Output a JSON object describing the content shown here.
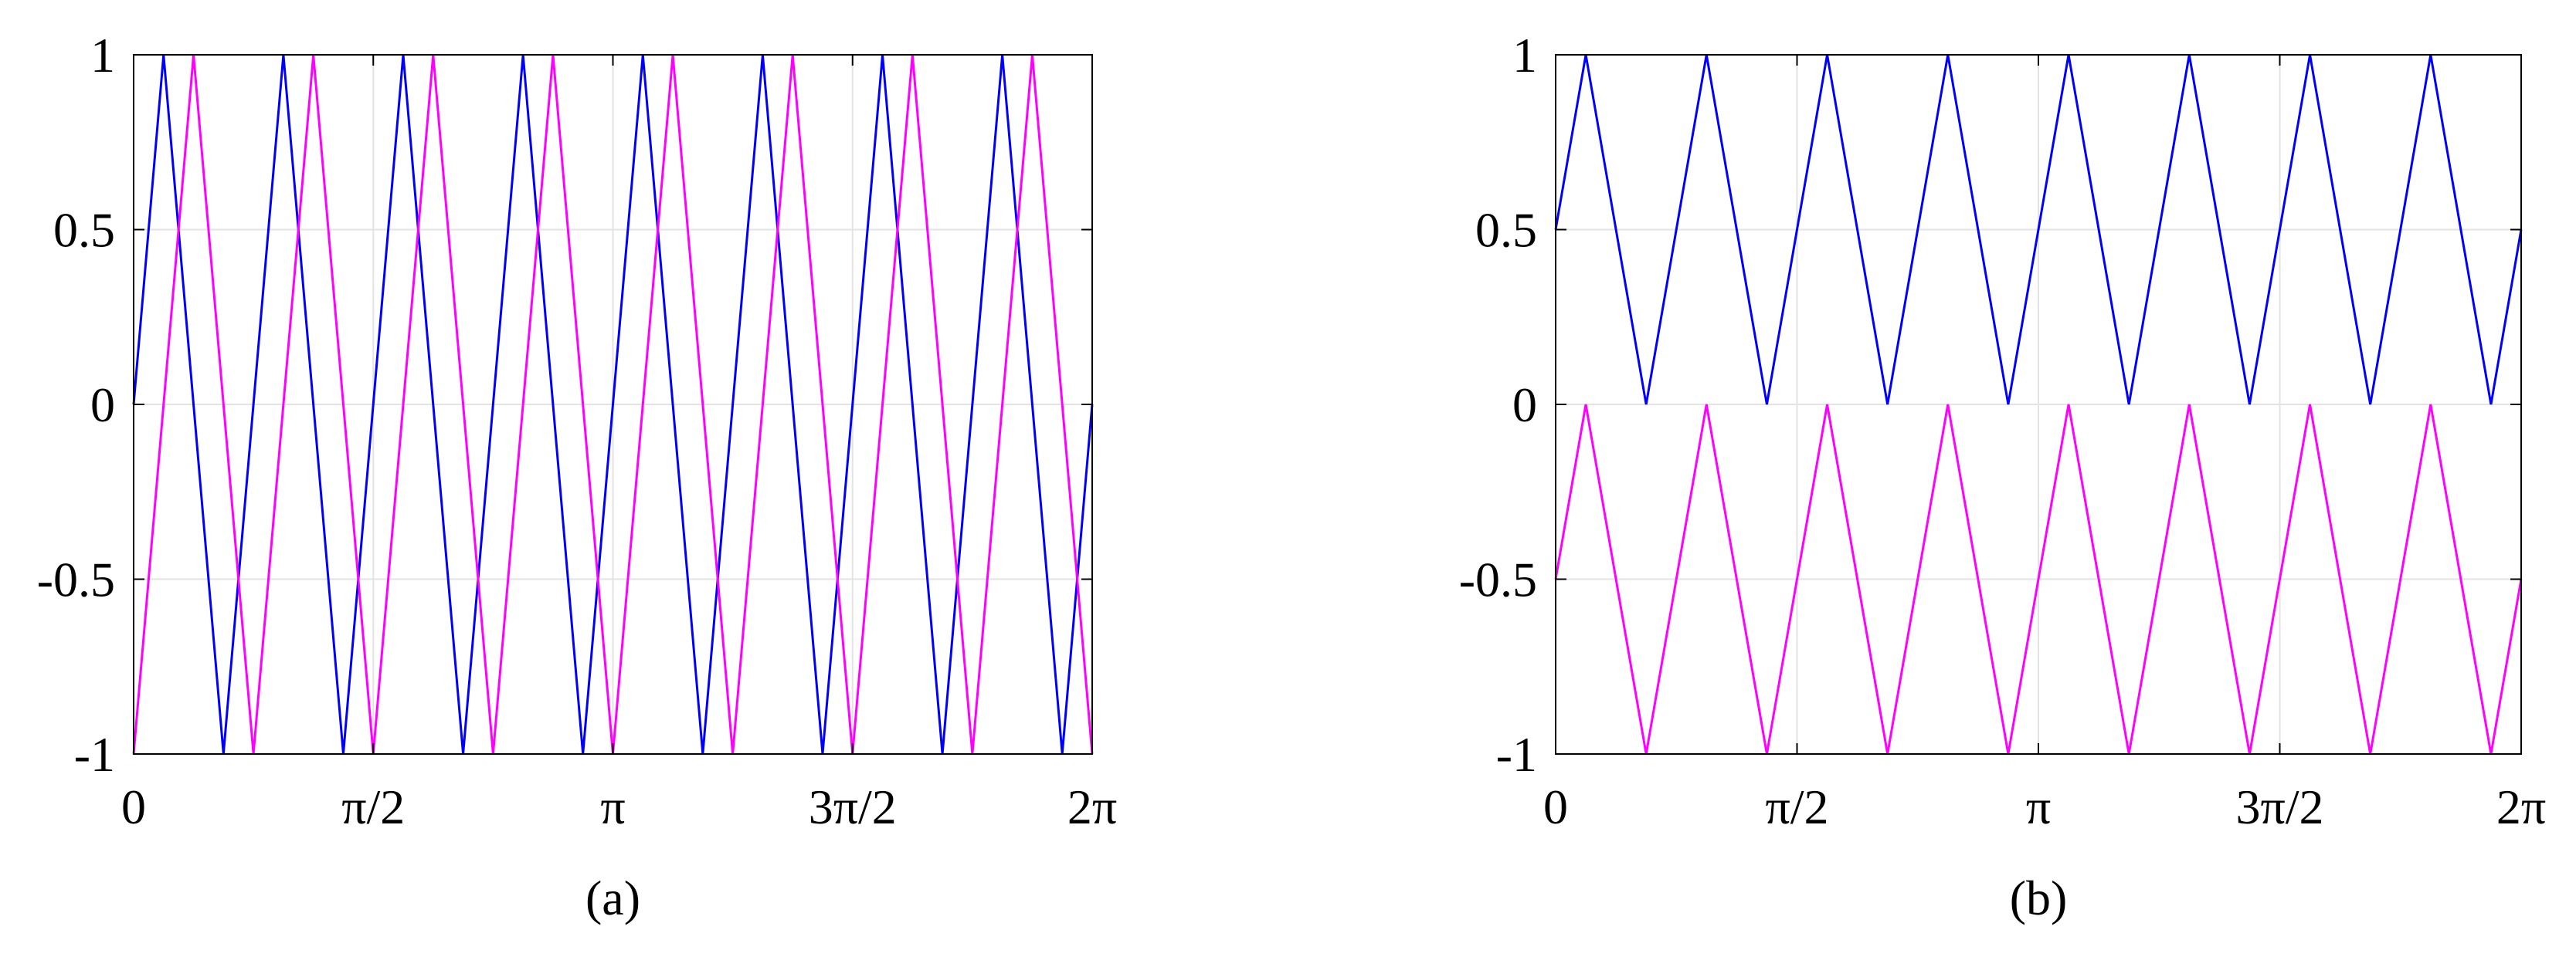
{
  "chart_data": [
    {
      "panel_label": "(a)",
      "type": "line",
      "xlim": [
        0,
        6.283185307
      ],
      "ylim": [
        -1,
        1
      ],
      "grid": true,
      "xticks": [
        {
          "value": 0,
          "label": "0"
        },
        {
          "value": 1.570796327,
          "label": "π/2"
        },
        {
          "value": 3.141592654,
          "label": "π"
        },
        {
          "value": 4.71238898,
          "label": "3π/2"
        },
        {
          "value": 6.283185307,
          "label": "2π"
        }
      ],
      "yticks": [
        {
          "value": 1,
          "label": "1"
        },
        {
          "value": 0.5,
          "label": "0.5"
        },
        {
          "value": 0,
          "label": "0"
        },
        {
          "value": -0.5,
          "label": "-0.5"
        },
        {
          "value": -1,
          "label": "-1"
        }
      ],
      "series": [
        {
          "color": "#0000ff",
          "x": [
            0,
            0.1963,
            0.589,
            0.9817,
            1.3744,
            1.7671,
            2.1598,
            2.5525,
            2.9452,
            3.3379,
            3.7306,
            4.1233,
            4.516,
            4.9087,
            5.3014,
            5.6941,
            6.0868,
            6.2832
          ],
          "y": [
            0,
            1,
            -1,
            1,
            -1,
            1,
            -1,
            1,
            -1,
            1,
            -1,
            1,
            -1,
            1,
            -1,
            1,
            -1,
            0
          ]
        },
        {
          "color": "#ff00ff",
          "x": [
            0,
            0.3927,
            0.7854,
            1.1781,
            1.5708,
            1.9635,
            2.3562,
            2.7489,
            3.1416,
            3.5343,
            3.927,
            4.3197,
            4.7124,
            5.1051,
            5.4978,
            5.8905,
            6.2832
          ],
          "y": [
            -1,
            1,
            -1,
            1,
            -1,
            1,
            -1,
            1,
            -1,
            1,
            -1,
            1,
            -1,
            1,
            -1,
            1,
            -1
          ]
        }
      ]
    },
    {
      "panel_label": "(b)",
      "type": "line",
      "xlim": [
        0,
        6.283185307
      ],
      "ylim": [
        -1,
        1
      ],
      "grid": true,
      "xticks": [
        {
          "value": 0,
          "label": "0"
        },
        {
          "value": 1.570796327,
          "label": "π/2"
        },
        {
          "value": 3.141592654,
          "label": "π"
        },
        {
          "value": 4.71238898,
          "label": "3π/2"
        },
        {
          "value": 6.283185307,
          "label": "2π"
        }
      ],
      "yticks": [
        {
          "value": 1,
          "label": "1"
        },
        {
          "value": 0.5,
          "label": "0.5"
        },
        {
          "value": 0,
          "label": "0"
        },
        {
          "value": -0.5,
          "label": "-0.5"
        },
        {
          "value": -1,
          "label": "-1"
        }
      ],
      "series": [
        {
          "color": "#0000ff",
          "x": [
            0,
            0.1963,
            0.589,
            0.9817,
            1.3744,
            1.7671,
            2.1598,
            2.5525,
            2.9452,
            3.3379,
            3.7306,
            4.1233,
            4.516,
            4.9087,
            5.3014,
            5.6941,
            6.0868,
            6.2832
          ],
          "y": [
            0.5,
            1,
            0,
            1,
            0,
            1,
            0,
            1,
            0,
            1,
            0,
            1,
            0,
            1,
            0,
            1,
            0,
            0.5
          ]
        },
        {
          "color": "#ff00ff",
          "x": [
            0,
            0.1963,
            0.589,
            0.9817,
            1.3744,
            1.7671,
            2.1598,
            2.5525,
            2.9452,
            3.3379,
            3.7306,
            4.1233,
            4.516,
            4.9087,
            5.3014,
            5.6941,
            6.0868,
            6.2832
          ],
          "y": [
            -0.5,
            0,
            -1,
            0,
            -1,
            0,
            -1,
            0,
            -1,
            0,
            -1,
            0,
            -1,
            0,
            -1,
            0,
            -1,
            -0.5
          ]
        }
      ]
    }
  ]
}
